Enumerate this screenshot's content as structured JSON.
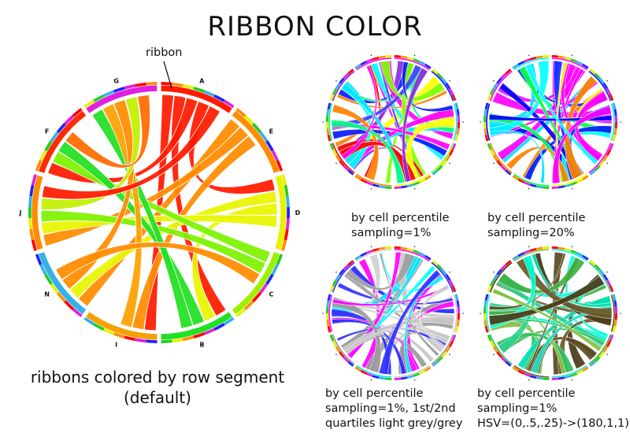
{
  "title": "RIBBON COLOR",
  "callout": "ribbon",
  "main": {
    "caption": [
      "ribbons colored by row segment",
      "(default)"
    ],
    "segments": [
      {
        "label": "A",
        "color": "#ff1a00",
        "ribbon_color": "#ff1a00"
      },
      {
        "label": "E",
        "color": "#ff8c00",
        "ribbon_color": "#ff8c00"
      },
      {
        "label": "D",
        "color": "#e6f200",
        "ribbon_color": "#e8f500"
      },
      {
        "label": "C",
        "color": "#9df000",
        "ribbon_color": "#7df200"
      },
      {
        "label": "B",
        "color": "#22e022",
        "ribbon_color": "#22e022"
      },
      {
        "label": "I",
        "color": "#f4a000",
        "ribbon_color": "#ffa000"
      },
      {
        "label": "N",
        "color": "#35b0e8",
        "ribbon_color": "#ff8c00"
      },
      {
        "label": "J",
        "color": "#ff8c00",
        "ribbon_color": "#c0f000"
      },
      {
        "label": "F",
        "color": "#ff2a00",
        "ribbon_color": "#33e833"
      },
      {
        "label": "G",
        "color": "#e020e0",
        "ribbon_color": "#ff6a00"
      }
    ],
    "ribbons": [
      {
        "from": 0,
        "to": 5,
        "color": "#ff1a00"
      },
      {
        "from": 0,
        "to": 4,
        "color": "#ff1a00"
      },
      {
        "from": 0,
        "to": 8,
        "color": "#ff1a00"
      },
      {
        "from": 0,
        "to": 2,
        "color": "#ff1a00"
      },
      {
        "from": 1,
        "to": 6,
        "color": "#ff8c00"
      },
      {
        "from": 1,
        "to": 7,
        "color": "#ff8c00"
      },
      {
        "from": 1,
        "to": 5,
        "color": "#ff8c00"
      },
      {
        "from": 2,
        "to": 6,
        "color": "#e8f500"
      },
      {
        "from": 2,
        "to": 4,
        "color": "#e8f500"
      },
      {
        "from": 2,
        "to": 7,
        "color": "#e8f500"
      },
      {
        "from": 3,
        "to": 8,
        "color": "#7df200"
      },
      {
        "from": 3,
        "to": 7,
        "color": "#7df200"
      },
      {
        "from": 4,
        "to": 8,
        "color": "#22e022"
      },
      {
        "from": 4,
        "to": 9,
        "color": "#22e022"
      },
      {
        "from": 5,
        "to": 9,
        "color": "#ffa000"
      },
      {
        "from": 6,
        "to": 9,
        "color": "#ff8c00"
      },
      {
        "from": 7,
        "to": 9,
        "color": "#c0f000"
      },
      {
        "from": 8,
        "to": 9,
        "color": "#ff6a00"
      },
      {
        "from": 6,
        "to": 3,
        "color": "#ff8c00"
      },
      {
        "from": 7,
        "to": 0,
        "color": "#ff1a00"
      }
    ]
  },
  "panels": [
    {
      "caption": [
        "by cell percentile",
        "sampling=1%"
      ],
      "palette": [
        "#ff00ff",
        "#0a1aff",
        "#00e5ff",
        "#7fff00",
        "#ffff00",
        "#ff8000",
        "#ff0000",
        "#00ff80",
        "#8a2be2",
        "#ff00ff",
        "#00ffff",
        "#4040ff"
      ]
    },
    {
      "caption": [
        "by cell percentile",
        "sampling=20%"
      ],
      "palette": [
        "#ff00ff",
        "#0020ff",
        "#00e5ff",
        "#ff00ff",
        "#ffff00",
        "#00ff40",
        "#ff8000",
        "#0000ff",
        "#ff00ff",
        "#00ffff",
        "#ff00ff",
        "#1030ff"
      ]
    },
    {
      "caption": [
        "by cell percentile",
        "sampling=1%, 1st/2nd",
        "quartiles light grey/grey"
      ],
      "palette": [
        "#ff00ff",
        "#2a2aff",
        "#c8c8c8",
        "#9a9a9a",
        "#c8c8c8",
        "#00e5ff",
        "#9a9a9a",
        "#ff00ff",
        "#3030ff",
        "#d0d0d0",
        "#00ffff",
        "#a0a0a0"
      ]
    },
    {
      "caption": [
        "by cell percentile",
        "sampling=1%",
        "HSV=(0,.5,.25)->(180,1,1)"
      ],
      "palette": [
        "#00ffe5",
        "#2fd090",
        "#5a4a20",
        "#3fb040",
        "#20e0c0",
        "#6a5a2a",
        "#30c060",
        "#00ffd0",
        "#4a3a18",
        "#80c040",
        "#00e0b0",
        "#5a5020"
      ]
    }
  ],
  "colors": {
    "ring_palette": [
      "#ff0000",
      "#ff8c00",
      "#e6f200",
      "#22cc22",
      "#35b0e8",
      "#2020ff",
      "#e020e0"
    ]
  }
}
